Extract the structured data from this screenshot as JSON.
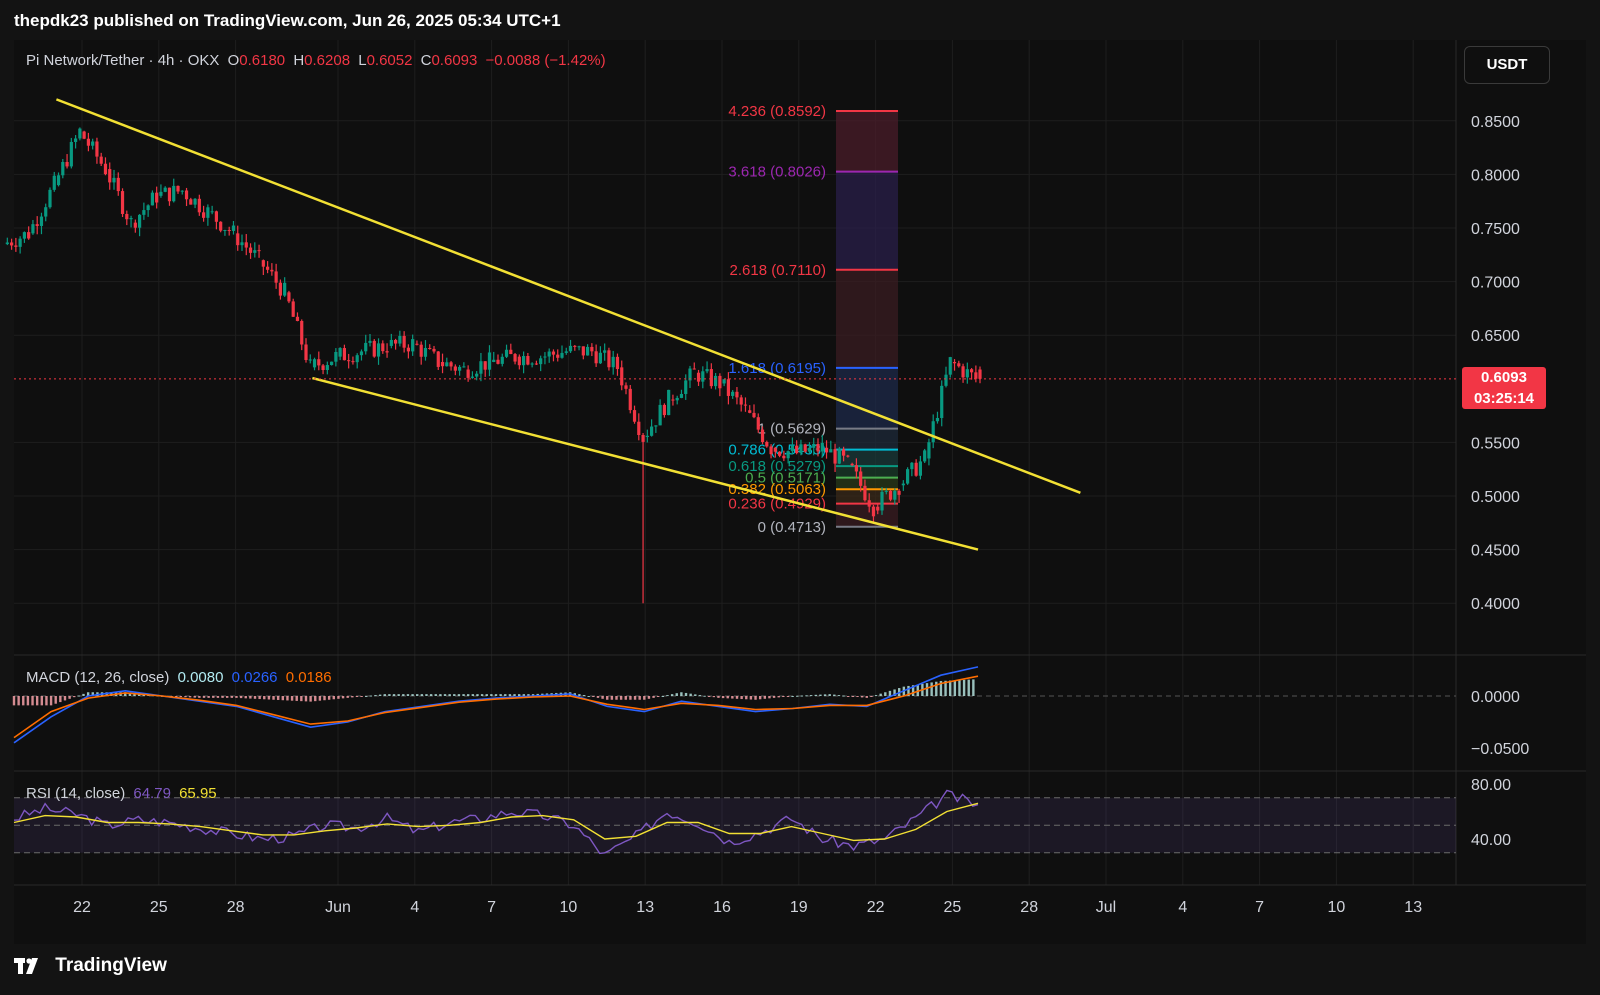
{
  "header": {
    "publisher_line": "thepdk23 published on TradingView.com, Jun 26, 2025 05:34 UTC+1"
  },
  "symbol_line": {
    "name": "Pi Network/Tether · 4h · OKX",
    "open_label": "O",
    "open": "0.6180",
    "high_label": "H",
    "high": "0.6208",
    "low_label": "L",
    "low": "0.6052",
    "close_label": "C",
    "close": "0.6093",
    "change": "−0.0088 (−1.42%)"
  },
  "currency_button": "USDT",
  "last_price": {
    "value": "0.6093",
    "countdown": "03:25:14"
  },
  "macd_legend": {
    "title": "MACD (12, 26, close)",
    "histogram": "0.0080",
    "macd": "0.0266",
    "signal": "0.0186"
  },
  "rsi_legend": {
    "title": "RSI (14, close)",
    "rsi": "64.79",
    "ma": "65.95"
  },
  "footer": {
    "brand": "TradingView"
  },
  "colors": {
    "up": "#089981",
    "down": "#f23645",
    "trendline": "#f2e034",
    "macd": "#2962ff",
    "signal": "#ff6d00",
    "rsi": "#7e57c2",
    "rsi_ma": "#f2e034",
    "background": "#0f0f0f"
  },
  "chart_data": {
    "type": "candlestick",
    "title": "",
    "price_axis": {
      "ticks": [
        "0.8500",
        "0.8000",
        "0.7500",
        "0.7000",
        "0.6500",
        "0.5500",
        "0.5000",
        "0.4500",
        "0.4000"
      ],
      "ylim": [
        0.37,
        0.89
      ]
    },
    "macd_axis": {
      "ticks": [
        "0.0000",
        "−0.0500"
      ]
    },
    "rsi_axis": {
      "ticks": [
        "80.00",
        "40.00"
      ]
    },
    "x_ticks": [
      "22",
      "25",
      "28",
      "Jun",
      "4",
      "7",
      "10",
      "13",
      "16",
      "19",
      "22",
      "25",
      "28",
      "Jul",
      "4",
      "7",
      "10",
      "13"
    ],
    "price_path": [
      {
        "d": "May 19",
        "p": 0.735
      },
      {
        "d": "May 20",
        "p": 0.745
      },
      {
        "d": "May 21",
        "p": 0.79
      },
      {
        "d": "May 22",
        "p": 0.84
      },
      {
        "d": "May 23",
        "p": 0.805
      },
      {
        "d": "May 24",
        "p": 0.755
      },
      {
        "d": "May 25",
        "p": 0.78
      },
      {
        "d": "May 26",
        "p": 0.785
      },
      {
        "d": "May 27",
        "p": 0.765
      },
      {
        "d": "May 28",
        "p": 0.745
      },
      {
        "d": "May 29",
        "p": 0.72
      },
      {
        "d": "May 30",
        "p": 0.69
      },
      {
        "d": "May 31",
        "p": 0.62
      },
      {
        "d": "Jun 1",
        "p": 0.63
      },
      {
        "d": "Jun 2",
        "p": 0.635
      },
      {
        "d": "Jun 3",
        "p": 0.64
      },
      {
        "d": "Jun 4",
        "p": 0.642
      },
      {
        "d": "Jun 5",
        "p": 0.625
      },
      {
        "d": "Jun 6",
        "p": 0.618
      },
      {
        "d": "Jun 7",
        "p": 0.625
      },
      {
        "d": "Jun 8",
        "p": 0.63
      },
      {
        "d": "Jun 9",
        "p": 0.63
      },
      {
        "d": "Jun 10",
        "p": 0.635
      },
      {
        "d": "Jun 11",
        "p": 0.635
      },
      {
        "d": "Jun 12",
        "p": 0.62
      },
      {
        "d": "Jun 13",
        "p": 0.555
      },
      {
        "d": "Jun 14",
        "p": 0.59
      },
      {
        "d": "Jun 15",
        "p": 0.615
      },
      {
        "d": "Jun 16",
        "p": 0.605
      },
      {
        "d": "Jun 17",
        "p": 0.58
      },
      {
        "d": "Jun 18",
        "p": 0.545
      },
      {
        "d": "Jun 19",
        "p": 0.54
      },
      {
        "d": "Jun 20",
        "p": 0.545
      },
      {
        "d": "Jun 21",
        "p": 0.53
      },
      {
        "d": "Jun 22",
        "p": 0.49
      },
      {
        "d": "Jun 23",
        "p": 0.51
      },
      {
        "d": "Jun 24",
        "p": 0.535
      },
      {
        "d": "Jun 25",
        "p": 0.625
      },
      {
        "d": "Jun 26",
        "p": 0.6093
      }
    ],
    "notable_wicks": [
      {
        "d": "Jun 13",
        "low": 0.4
      }
    ],
    "trendlines": [
      {
        "name": "upper",
        "from": {
          "d": "May 21",
          "p": 0.87
        },
        "to": {
          "d": "Jun 30",
          "p": 0.503
        }
      },
      {
        "name": "lower",
        "from": {
          "d": "May 31",
          "p": 0.61
        },
        "to": {
          "d": "Jun 26",
          "p": 0.45
        }
      }
    ],
    "fibonacci": [
      {
        "label": "4.236 (0.8592)",
        "level": 0.8592,
        "color": "#f23645"
      },
      {
        "label": "3.618 (0.8026)",
        "level": 0.8026,
        "color": "#9c27b0"
      },
      {
        "label": "2.618 (0.7110)",
        "level": 0.711,
        "color": "#f23645"
      },
      {
        "label": "1.618 (0.6195)",
        "level": 0.6195,
        "color": "#2962ff"
      },
      {
        "label": "1 (0.5629)",
        "level": 0.5629,
        "color": "#787b86"
      },
      {
        "label": "0.786 (0.5433)",
        "level": 0.5433,
        "color": "#00bcd4"
      },
      {
        "label": "0.618 (0.5279)",
        "level": 0.5279,
        "color": "#089981"
      },
      {
        "label": "0.5 (0.5171)",
        "level": 0.5171,
        "color": "#4caf50"
      },
      {
        "label": "0.382 (0.5063)",
        "level": 0.5063,
        "color": "#ff9800"
      },
      {
        "label": "0.236 (0.4929)",
        "level": 0.4929,
        "color": "#f23645"
      },
      {
        "label": "0 (0.4713)",
        "level": 0.4713,
        "color": "#787b86"
      }
    ],
    "macd": {
      "macd_path": [
        -0.045,
        -0.02,
        0.0,
        0.005,
        0.0,
        -0.005,
        -0.01,
        -0.02,
        -0.03,
        -0.025,
        -0.015,
        -0.01,
        -0.005,
        -0.002,
        0.0,
        0.002,
        -0.01,
        -0.015,
        -0.005,
        -0.01,
        -0.015,
        -0.012,
        -0.008,
        -0.01,
        0.005,
        0.02,
        0.028
      ],
      "signal_path": [
        -0.04,
        -0.015,
        -0.002,
        0.003,
        0.0,
        -0.004,
        -0.009,
        -0.018,
        -0.027,
        -0.024,
        -0.016,
        -0.011,
        -0.006,
        -0.003,
        -0.001,
        0.0,
        -0.008,
        -0.013,
        -0.007,
        -0.009,
        -0.013,
        -0.012,
        -0.009,
        -0.009,
        0.0,
        0.012,
        0.019
      ]
    },
    "rsi": {
      "upper_band": 70,
      "middle": 50,
      "lower_band": 30,
      "rsi_path": [
        55,
        62,
        58,
        50,
        54,
        52,
        48,
        44,
        40,
        42,
        50,
        48,
        55,
        45,
        52,
        55,
        60,
        57,
        50,
        28,
        42,
        60,
        52,
        38,
        45,
        55,
        40,
        35,
        40,
        55,
        72,
        65
      ],
      "ma_path": [
        52,
        57,
        56,
        52,
        52,
        51,
        49,
        46,
        43,
        43,
        46,
        48,
        51,
        49,
        50,
        52,
        56,
        57,
        54,
        40,
        42,
        52,
        52,
        44,
        44,
        49,
        44,
        39,
        40,
        47,
        60,
        66
      ]
    }
  }
}
